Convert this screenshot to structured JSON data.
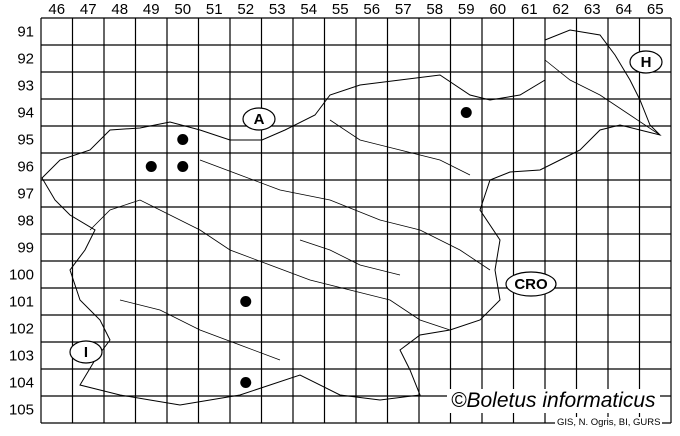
{
  "map": {
    "columns": [
      "46",
      "47",
      "48",
      "49",
      "50",
      "51",
      "52",
      "53",
      "54",
      "55",
      "56",
      "57",
      "58",
      "59",
      "60",
      "61",
      "62",
      "63",
      "64",
      "65"
    ],
    "rows": [
      "91",
      "92",
      "93",
      "94",
      "95",
      "96",
      "97",
      "98",
      "99",
      "100",
      "101",
      "102",
      "103",
      "104",
      "105"
    ],
    "countries": {
      "austria": "A",
      "hungary": "H",
      "croatia": "CRO",
      "italy": "I"
    },
    "records": [
      {
        "col": 50,
        "row": 95
      },
      {
        "col": 49,
        "row": 96
      },
      {
        "col": 50,
        "row": 96
      },
      {
        "col": 52,
        "row": 101
      },
      {
        "col": 52,
        "row": 104
      },
      {
        "col": 59,
        "row": 94
      }
    ],
    "dot_color": "#000000",
    "copyright": "©Boletus informaticus",
    "credit": "GIS, N. Ogris, BI, GURS"
  }
}
